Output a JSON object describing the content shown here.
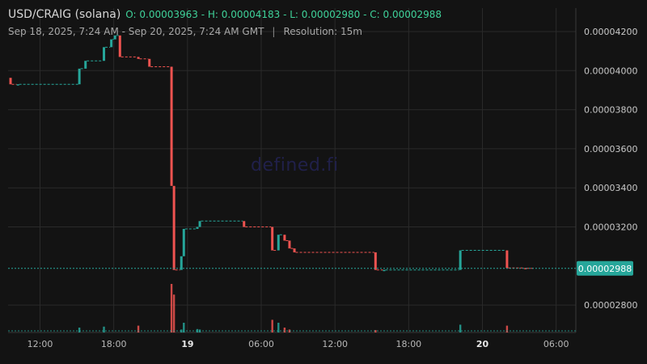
{
  "header": {
    "symbol": "USD/CRAIG (solana)",
    "ohlc": "O: 0.00003963 - H: 0.00004183 - L: 0.00002980 - C: 0.00002988",
    "range": "Sep 18, 2025, 7:24 AM - Sep 20, 2025, 7:24 AM GMT",
    "separator": "|",
    "resolution": "Resolution: 15m"
  },
  "watermark": "defined.fi",
  "last_price_label": "0.00002988",
  "colors": {
    "background": "#131313",
    "up": "#26a69a",
    "down": "#ef5350",
    "grid": "#2a2a2a",
    "axis_text": "#c8c8c8",
    "price_tag": "#26a69a"
  },
  "chart_data": {
    "type": "candlestick",
    "title": "USD/CRAIG (solana)",
    "ylim": [
      2.66e-05,
      4.32e-05
    ],
    "y_ticks": [
      {
        "value": 4.2e-05,
        "label": "0.00004200"
      },
      {
        "value": 4e-05,
        "label": "0.00004000"
      },
      {
        "value": 3.8e-05,
        "label": "0.00003800"
      },
      {
        "value": 3.6e-05,
        "label": "0.00003600"
      },
      {
        "value": 3.4e-05,
        "label": "0.00003400"
      },
      {
        "value": 3.2e-05,
        "label": "0.00003200"
      },
      {
        "value": 2.8e-05,
        "label": "0.00002800"
      }
    ],
    "x_range_hours": [
      9.4,
      55.6
    ],
    "x_ticks": [
      {
        "hour": 12,
        "label": "12:00",
        "bold": false
      },
      {
        "hour": 18,
        "label": "18:00",
        "bold": false
      },
      {
        "hour": 24,
        "label": "19",
        "bold": true
      },
      {
        "hour": 30,
        "label": "06:00",
        "bold": false
      },
      {
        "hour": 36,
        "label": "12:00",
        "bold": false
      },
      {
        "hour": 42,
        "label": "18:00",
        "bold": false
      },
      {
        "hour": 48,
        "label": "20",
        "bold": true
      },
      {
        "hour": 54,
        "label": "06:00",
        "bold": false
      }
    ],
    "candles": [
      {
        "h": 9.6,
        "o": 3.963e-05,
        "c": 3.93e-05
      },
      {
        "h": 10.2,
        "o": 3.93e-05,
        "c": 3.93e-05
      },
      {
        "h": 15.2,
        "o": 3.93e-05,
        "c": 4.01e-05
      },
      {
        "h": 15.7,
        "o": 4.01e-05,
        "c": 4.05e-05
      },
      {
        "h": 17.2,
        "o": 4.05e-05,
        "c": 4.12e-05
      },
      {
        "h": 17.8,
        "o": 4.12e-05,
        "c": 4.16e-05
      },
      {
        "h": 18.1,
        "o": 4.16e-05,
        "c": 4.18e-05
      },
      {
        "h": 18.5,
        "o": 4.18e-05,
        "c": 4.07e-05
      },
      {
        "h": 20.0,
        "o": 4.07e-05,
        "c": 4.06e-05
      },
      {
        "h": 20.9,
        "o": 4.06e-05,
        "c": 4.02e-05
      },
      {
        "h": 22.7,
        "o": 4.02e-05,
        "c": 3.41e-05
      },
      {
        "h": 22.9,
        "o": 3.41e-05,
        "c": 2.98e-05
      },
      {
        "h": 23.5,
        "o": 2.98e-05,
        "c": 3.05e-05
      },
      {
        "h": 23.7,
        "o": 3.05e-05,
        "c": 3.19e-05
      },
      {
        "h": 24.8,
        "o": 3.19e-05,
        "c": 3.2e-05
      },
      {
        "h": 25.0,
        "o": 3.2e-05,
        "c": 3.23e-05
      },
      {
        "h": 28.6,
        "o": 3.23e-05,
        "c": 3.2e-05
      },
      {
        "h": 30.9,
        "o": 3.2e-05,
        "c": 3.08e-05
      },
      {
        "h": 31.4,
        "o": 3.08e-05,
        "c": 3.16e-05
      },
      {
        "h": 31.9,
        "o": 3.16e-05,
        "c": 3.13e-05
      },
      {
        "h": 32.3,
        "o": 3.13e-05,
        "c": 3.09e-05
      },
      {
        "h": 32.7,
        "o": 3.09e-05,
        "c": 3.07e-05
      },
      {
        "h": 39.3,
        "o": 3.07e-05,
        "c": 2.98e-05
      },
      {
        "h": 40.0,
        "o": 2.98e-05,
        "c": 2.98e-05
      },
      {
        "h": 46.2,
        "o": 2.98e-05,
        "c": 3.08e-05
      },
      {
        "h": 50.0,
        "o": 3.08e-05,
        "c": 2.99e-05
      },
      {
        "h": 51.5,
        "o": 2.99e-05,
        "c": 2.988e-05
      }
    ],
    "volume": [
      {
        "h": 15.2,
        "v": 0.1
      },
      {
        "h": 17.2,
        "v": 0.12
      },
      {
        "h": 20.0,
        "v": 0.14
      },
      {
        "h": 22.7,
        "v": 1.0
      },
      {
        "h": 22.9,
        "v": 0.78
      },
      {
        "h": 23.5,
        "v": 0.06
      },
      {
        "h": 23.7,
        "v": 0.2
      },
      {
        "h": 24.8,
        "v": 0.07
      },
      {
        "h": 25.0,
        "v": 0.06
      },
      {
        "h": 30.9,
        "v": 0.26
      },
      {
        "h": 31.4,
        "v": 0.2
      },
      {
        "h": 31.9,
        "v": 0.1
      },
      {
        "h": 32.3,
        "v": 0.06
      },
      {
        "h": 39.3,
        "v": 0.05
      },
      {
        "h": 46.2,
        "v": 0.16
      },
      {
        "h": 50.0,
        "v": 0.14
      }
    ]
  }
}
